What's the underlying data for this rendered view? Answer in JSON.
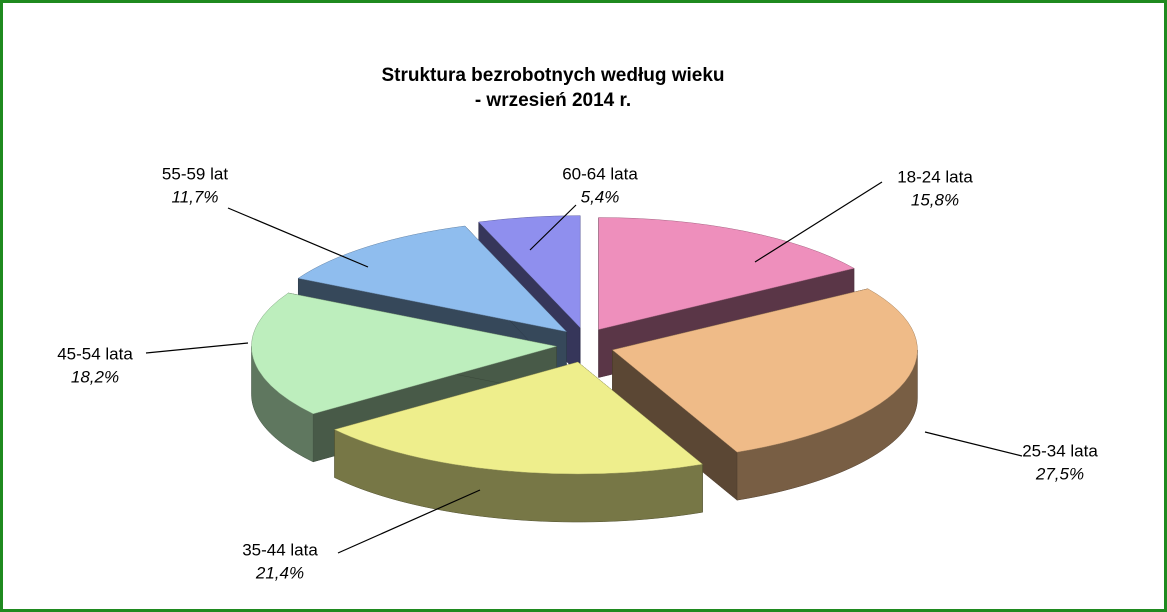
{
  "chart_data": {
    "type": "pie3d",
    "title": "Struktura bezrobotnych według wieku",
    "subtitle": "- wrzesień  2014 r.",
    "categories": [
      "18-24 lata",
      "25-34 lata",
      "35-44 lata",
      "45-54 lata",
      "55-59 lat",
      "60-64 lata"
    ],
    "values": [
      15.8,
      27.5,
      21.4,
      18.2,
      11.7,
      5.4
    ],
    "value_labels": [
      "15,8%",
      "27,5%",
      "21,4%",
      "18,2%",
      "11,7%",
      "5,4%"
    ],
    "colors": [
      "#ee8fbc",
      "#efbb88",
      "#eeee8c",
      "#bdeebd",
      "#8fbdee",
      "#8f8fee"
    ]
  }
}
